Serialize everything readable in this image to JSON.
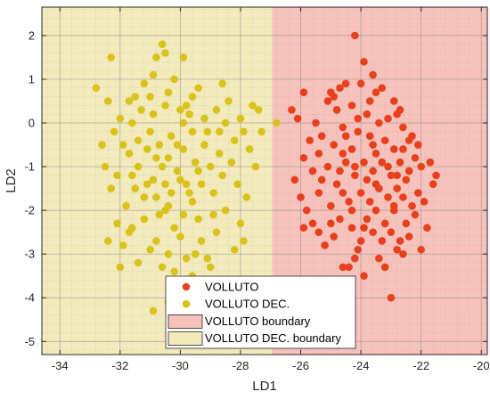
{
  "chart_data": {
    "type": "scatter",
    "title": "",
    "xlabel": "LD1",
    "ylabel": "LD2",
    "xlim": [
      -34.6,
      -19.8
    ],
    "ylim": [
      -5.3,
      2.65
    ],
    "x_ticks": [
      -34,
      -32,
      -30,
      -28,
      -26,
      -24,
      -22,
      -20
    ],
    "y_ticks": [
      -5,
      -4,
      -3,
      -2,
      -1,
      0,
      1,
      2
    ],
    "grid": true,
    "minor_grid": true,
    "decision_boundary_x": -26.95,
    "legend_placement": "bottom-center",
    "series": [
      {
        "name": "VOLLUTO",
        "color": "#e8401c",
        "marker": "circle",
        "cluster_summary": {
          "x_center": -23.8,
          "y_center": -1.0,
          "x_range": [
            -26.3,
            -21.5
          ],
          "y_range": [
            -4.0,
            2.0
          ]
        },
        "points": [
          [
            -24.2,
            2.0
          ],
          [
            -23.9,
            1.4
          ],
          [
            -24.5,
            0.9
          ],
          [
            -23.6,
            1.1
          ],
          [
            -25.0,
            0.7
          ],
          [
            -24.7,
            0.8
          ],
          [
            -23.3,
            0.8
          ],
          [
            -22.9,
            0.5
          ],
          [
            -22.7,
            0.3
          ],
          [
            -24.9,
            0.6
          ],
          [
            -26.3,
            0.3
          ],
          [
            -25.9,
            0.7
          ],
          [
            -25.5,
            0.0
          ],
          [
            -24.3,
            0.4
          ],
          [
            -23.8,
            0.2
          ],
          [
            -23.1,
            0.1
          ],
          [
            -22.6,
            -0.1
          ],
          [
            -22.3,
            -0.3
          ],
          [
            -22.1,
            -0.5
          ],
          [
            -22.0,
            -1.0
          ],
          [
            -21.6,
            -1.4
          ],
          [
            -21.9,
            -1.8
          ],
          [
            -22.2,
            -2.1
          ],
          [
            -21.8,
            -2.4
          ],
          [
            -22.4,
            -2.6
          ],
          [
            -22.8,
            -2.9
          ],
          [
            -23.4,
            -3.1
          ],
          [
            -24.2,
            -3.1
          ],
          [
            -24.6,
            -3.3
          ],
          [
            -23.0,
            -4.0
          ],
          [
            -25.4,
            -2.5
          ],
          [
            -25.8,
            -2.0
          ],
          [
            -25.9,
            -2.4
          ],
          [
            -26.2,
            -1.3
          ],
          [
            -26.0,
            -1.7
          ],
          [
            -25.4,
            -1.6
          ],
          [
            -25.6,
            -1.1
          ],
          [
            -25.4,
            -0.7
          ],
          [
            -25.3,
            -0.3
          ],
          [
            -24.9,
            -0.5
          ],
          [
            -24.6,
            -0.1
          ],
          [
            -24.3,
            -0.6
          ],
          [
            -24.1,
            -0.2
          ],
          [
            -23.7,
            -0.3
          ],
          [
            -23.5,
            -0.7
          ],
          [
            -23.2,
            -0.4
          ],
          [
            -22.9,
            -0.6
          ],
          [
            -22.7,
            -0.9
          ],
          [
            -22.5,
            -1.3
          ],
          [
            -22.6,
            -1.7
          ],
          [
            -22.9,
            -2.0
          ],
          [
            -23.2,
            -2.3
          ],
          [
            -23.6,
            -2.5
          ],
          [
            -24.0,
            -2.7
          ],
          [
            -24.3,
            -2.4
          ],
          [
            -24.7,
            -2.2
          ],
          [
            -25.0,
            -1.9
          ],
          [
            -24.8,
            -1.4
          ],
          [
            -25.1,
            -1.0
          ],
          [
            -24.5,
            -0.9
          ],
          [
            -24.2,
            -1.2
          ],
          [
            -23.9,
            -0.9
          ],
          [
            -23.6,
            -1.1
          ],
          [
            -23.3,
            -0.9
          ],
          [
            -23.0,
            -1.2
          ],
          [
            -22.8,
            -1.5
          ],
          [
            -23.1,
            -1.7
          ],
          [
            -23.4,
            -1.5
          ],
          [
            -23.7,
            -1.8
          ],
          [
            -24.0,
            -1.6
          ],
          [
            -24.4,
            -1.8
          ],
          [
            -24.6,
            -1.6
          ],
          [
            -24.9,
            -2.6
          ],
          [
            -25.2,
            -2.8
          ],
          [
            -24.1,
            -2.9
          ],
          [
            -23.8,
            -2.2
          ],
          [
            -23.5,
            -2.0
          ],
          [
            -23.0,
            -2.5
          ],
          [
            -22.5,
            -2.3
          ],
          [
            -22.3,
            -1.9
          ],
          [
            -22.1,
            -1.6
          ],
          [
            -22.4,
            -1.1
          ],
          [
            -22.6,
            -0.6
          ],
          [
            -23.4,
            0.0
          ],
          [
            -23.7,
            0.5
          ],
          [
            -24.8,
            0.3
          ],
          [
            -25.7,
            -0.4
          ],
          [
            -25.9,
            -0.8
          ],
          [
            -26.1,
            0.1
          ],
          [
            -25.1,
            0.5
          ],
          [
            -24.0,
            0.9
          ],
          [
            -23.5,
            0.7
          ],
          [
            -22.8,
            0.2
          ],
          [
            -22.4,
            -0.4
          ],
          [
            -21.7,
            -0.9
          ],
          [
            -21.5,
            -1.2
          ],
          [
            -22.0,
            -2.9
          ],
          [
            -22.7,
            -2.7
          ],
          [
            -23.9,
            -3.5
          ],
          [
            -24.4,
            -3.3
          ],
          [
            -25.6,
            -2.3
          ],
          [
            -23.2,
            -3.3
          ],
          [
            -22.6,
            -3.0
          ],
          [
            -24.5,
            -0.3
          ],
          [
            -23.8,
            -1.3
          ],
          [
            -23.1,
            -1.0
          ],
          [
            -24.3,
            -2.0
          ],
          [
            -23.6,
            -0.5
          ],
          [
            -24.1,
            0.1
          ],
          [
            -22.9,
            -1.9
          ],
          [
            -25.3,
            -1.3
          ],
          [
            -24.7,
            -1.1
          ],
          [
            -23.3,
            -2.7
          ],
          [
            -22.2,
            -0.8
          ],
          [
            -25.0,
            -2.3
          ],
          [
            -23.9,
            -2.4
          ],
          [
            -24.6,
            -0.7
          ],
          [
            -22.8,
            -1.2
          ],
          [
            -23.5,
            -1.4
          ],
          [
            -24.2,
            -1.0
          ]
        ]
      },
      {
        "name": "VOLLUTO DEC.",
        "color": "#d9c21a",
        "marker": "circle",
        "cluster_summary": {
          "x_center": -30.4,
          "y_center": -0.9,
          "x_range": [
            -32.8,
            -26.8
          ],
          "y_range": [
            -4.3,
            1.8
          ]
        },
        "points": [
          [
            -30.6,
            1.8
          ],
          [
            -30.8,
            1.5
          ],
          [
            -30.5,
            1.6
          ],
          [
            -29.9,
            1.5
          ],
          [
            -32.3,
            1.5
          ],
          [
            -32.8,
            0.8
          ],
          [
            -29.4,
            0.8
          ],
          [
            -28.6,
            0.9
          ],
          [
            -31.2,
            0.9
          ],
          [
            -30.9,
            1.1
          ],
          [
            -30.2,
            1.0
          ],
          [
            -31.7,
            0.5
          ],
          [
            -32.4,
            0.5
          ],
          [
            -31.5,
            0.6
          ],
          [
            -30.4,
            0.7
          ],
          [
            -29.6,
            0.6
          ],
          [
            -28.4,
            0.5
          ],
          [
            -27.4,
            0.3
          ],
          [
            -26.8,
            0.0
          ],
          [
            -27.3,
            -0.2
          ],
          [
            -28.0,
            0.1
          ],
          [
            -28.8,
            0.3
          ],
          [
            -29.2,
            0.1
          ],
          [
            -30.0,
            0.3
          ],
          [
            -30.9,
            0.2
          ],
          [
            -31.6,
            0.0
          ],
          [
            -32.2,
            -0.2
          ],
          [
            -32.6,
            -0.5
          ],
          [
            -32.5,
            -1.0
          ],
          [
            -32.3,
            -1.5
          ],
          [
            -31.8,
            -1.9
          ],
          [
            -31.6,
            -2.4
          ],
          [
            -31.2,
            -2.2
          ],
          [
            -30.8,
            -2.7
          ],
          [
            -30.4,
            -3.0
          ],
          [
            -29.8,
            -3.1
          ],
          [
            -29.1,
            -3.1
          ],
          [
            -28.2,
            -2.9
          ],
          [
            -29.0,
            -3.3
          ],
          [
            -31.4,
            -3.2
          ],
          [
            -32.0,
            -3.3
          ],
          [
            -31.9,
            -2.8
          ],
          [
            -32.4,
            -2.7
          ],
          [
            -32.1,
            -2.3
          ],
          [
            -30.9,
            -4.3
          ],
          [
            -30.4,
            -4.1
          ],
          [
            -28.4,
            -3.6
          ],
          [
            -29.6,
            -3.5
          ],
          [
            -28.8,
            -2.5
          ],
          [
            -28.5,
            -2.0
          ],
          [
            -27.8,
            -1.7
          ],
          [
            -28.1,
            -1.4
          ],
          [
            -27.5,
            -1.0
          ],
          [
            -27.7,
            -0.6
          ],
          [
            -28.2,
            -0.4
          ],
          [
            -28.7,
            -0.7
          ],
          [
            -29.0,
            -1.0
          ],
          [
            -29.3,
            -1.4
          ],
          [
            -29.6,
            -1.8
          ],
          [
            -29.9,
            -2.1
          ],
          [
            -30.2,
            -2.4
          ],
          [
            -30.5,
            -2.0
          ],
          [
            -30.8,
            -1.7
          ],
          [
            -31.1,
            -1.4
          ],
          [
            -31.4,
            -1.0
          ],
          [
            -31.7,
            -0.7
          ],
          [
            -31.4,
            -0.4
          ],
          [
            -31.0,
            -0.2
          ],
          [
            -30.7,
            -0.5
          ],
          [
            -30.4,
            -0.8
          ],
          [
            -30.1,
            -1.1
          ],
          [
            -29.8,
            -1.4
          ],
          [
            -29.5,
            -0.9
          ],
          [
            -29.2,
            -0.5
          ],
          [
            -29.6,
            -0.2
          ],
          [
            -29.9,
            0.0
          ],
          [
            -30.3,
            -0.3
          ],
          [
            -30.6,
            -1.0
          ],
          [
            -30.9,
            -1.3
          ],
          [
            -31.2,
            -1.7
          ],
          [
            -30.7,
            -2.1
          ],
          [
            -30.3,
            -1.6
          ],
          [
            -29.9,
            -0.6
          ],
          [
            -29.4,
            -2.2
          ],
          [
            -28.9,
            -1.6
          ],
          [
            -28.6,
            -1.2
          ],
          [
            -28.3,
            -0.9
          ],
          [
            -27.9,
            -0.2
          ],
          [
            -27.6,
            0.4
          ],
          [
            -28.5,
            0.0
          ],
          [
            -31.9,
            -0.5
          ],
          [
            -32.1,
            -1.2
          ],
          [
            -31.5,
            -1.5
          ],
          [
            -31.1,
            -0.6
          ],
          [
            -30.5,
            0.4
          ],
          [
            -29.7,
            0.2
          ],
          [
            -31.3,
            0.3
          ],
          [
            -32.0,
            0.1
          ],
          [
            -30.0,
            -2.6
          ],
          [
            -29.3,
            -2.7
          ],
          [
            -28.9,
            -2.1
          ],
          [
            -28.0,
            -2.3
          ],
          [
            -27.9,
            -2.7
          ],
          [
            -31.7,
            -2.5
          ],
          [
            -30.2,
            -3.4
          ],
          [
            -29.5,
            -3.0
          ],
          [
            -30.6,
            -3.3
          ],
          [
            -31.0,
            -2.9
          ],
          [
            -30.0,
            -1.3
          ],
          [
            -29.1,
            -0.2
          ],
          [
            -30.8,
            -0.8
          ],
          [
            -31.6,
            -1.2
          ],
          [
            -29.4,
            -1.1
          ],
          [
            -30.4,
            -1.9
          ],
          [
            -28.7,
            -0.2
          ],
          [
            -29.8,
            0.4
          ],
          [
            -31.0,
            0.6
          ],
          [
            -30.1,
            -0.5
          ],
          [
            -29.7,
            -1.6
          ],
          [
            -30.5,
            -1.4
          ]
        ]
      }
    ],
    "regions": [
      {
        "name": "VOLLUTO boundary",
        "color": "#f7c2bb",
        "x_from": -26.95,
        "x_to": -19.8
      },
      {
        "name": "VOLLUTO DEC. boundary",
        "color": "#f4ebbc",
        "x_from": -34.6,
        "x_to": -26.95
      }
    ],
    "legend": [
      {
        "label": "VOLLUTO",
        "kind": "marker",
        "color": "#e8401c"
      },
      {
        "label": "VOLLUTO DEC.",
        "kind": "marker",
        "color": "#d9c21a"
      },
      {
        "label": "VOLLUTO boundary",
        "kind": "patch",
        "color": "#f7c2bb"
      },
      {
        "label": "VOLLUTO DEC. boundary",
        "kind": "patch",
        "color": "#f4ebbc"
      }
    ]
  }
}
